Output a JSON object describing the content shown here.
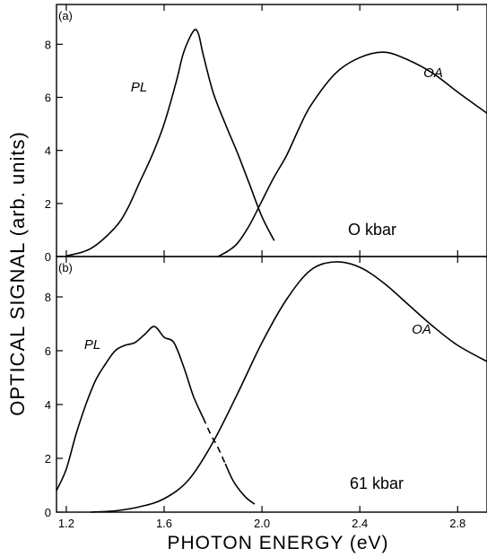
{
  "figure": {
    "ylabel": "OPTICAL SIGNAL (arb. units)",
    "xlabel": "PHOTON ENERGY (eV)"
  },
  "chart_data": [
    {
      "type": "line",
      "panel": "(a)",
      "annotation": "O kbar",
      "xlim": [
        1.16,
        2.92
      ],
      "ylim": [
        0,
        9.5
      ],
      "yticks": [
        0,
        2,
        4,
        6,
        8
      ],
      "xticks": [
        1.2,
        1.6,
        2.0,
        2.4,
        2.8
      ],
      "xtick_labels": [],
      "grid": false,
      "series": [
        {
          "name": "PL",
          "x": [
            1.2,
            1.3,
            1.4,
            1.45,
            1.5,
            1.55,
            1.6,
            1.65,
            1.68,
            1.72,
            1.74,
            1.76,
            1.8,
            1.85,
            1.9,
            1.95,
            2.0,
            2.05
          ],
          "y": [
            0.02,
            0.3,
            1.1,
            1.8,
            2.8,
            3.8,
            5.0,
            6.6,
            7.7,
            8.5,
            8.4,
            7.6,
            6.2,
            5.0,
            3.9,
            2.7,
            1.5,
            0.6
          ]
        },
        {
          "name": "OA",
          "x": [
            1.82,
            1.86,
            1.9,
            1.95,
            2.0,
            2.05,
            2.1,
            2.15,
            2.2,
            2.3,
            2.4,
            2.5,
            2.6,
            2.7,
            2.8,
            2.92
          ],
          "y": [
            0.0,
            0.2,
            0.5,
            1.2,
            2.1,
            3.0,
            3.8,
            4.8,
            5.7,
            6.9,
            7.5,
            7.7,
            7.4,
            6.9,
            6.2,
            5.4
          ]
        }
      ]
    },
    {
      "type": "line",
      "panel": "(b)",
      "annotation": "61 kbar",
      "xlim": [
        1.16,
        2.92
      ],
      "ylim": [
        0,
        9.5
      ],
      "yticks": [
        0,
        2,
        4,
        6,
        8
      ],
      "xticks": [
        1.2,
        1.6,
        2.0,
        2.4,
        2.8
      ],
      "xtick_labels": [
        "1.2",
        "1.6",
        "2.0",
        "2.4",
        "2.8"
      ],
      "grid": false,
      "series": [
        {
          "name": "PL",
          "x": [
            1.16,
            1.2,
            1.24,
            1.28,
            1.32,
            1.36,
            1.4,
            1.44,
            1.48,
            1.52,
            1.56,
            1.6,
            1.64,
            1.68,
            1.72,
            1.76
          ],
          "y": [
            0.8,
            1.6,
            2.9,
            4.0,
            4.9,
            5.5,
            6.0,
            6.2,
            6.3,
            6.6,
            6.9,
            6.5,
            6.3,
            5.4,
            4.3,
            3.5
          ]
        },
        {
          "name": "PL (dashed)",
          "x": [
            1.76,
            1.79,
            1.82,
            1.85
          ],
          "y": [
            3.5,
            2.9,
            2.4,
            1.8
          ]
        },
        {
          "name": "PL (tail)",
          "x": [
            1.85,
            1.88,
            1.91,
            1.94,
            1.97
          ],
          "y": [
            1.8,
            1.2,
            0.8,
            0.5,
            0.3
          ]
        },
        {
          "name": "OA",
          "x": [
            1.3,
            1.4,
            1.5,
            1.6,
            1.7,
            1.8,
            1.9,
            2.0,
            2.1,
            2.2,
            2.3,
            2.4,
            2.5,
            2.6,
            2.7,
            2.8,
            2.92
          ],
          "y": [
            0.0,
            0.05,
            0.2,
            0.5,
            1.2,
            2.6,
            4.4,
            6.3,
            7.9,
            9.0,
            9.3,
            9.1,
            8.5,
            7.7,
            6.9,
            6.2,
            5.6
          ]
        }
      ]
    }
  ]
}
